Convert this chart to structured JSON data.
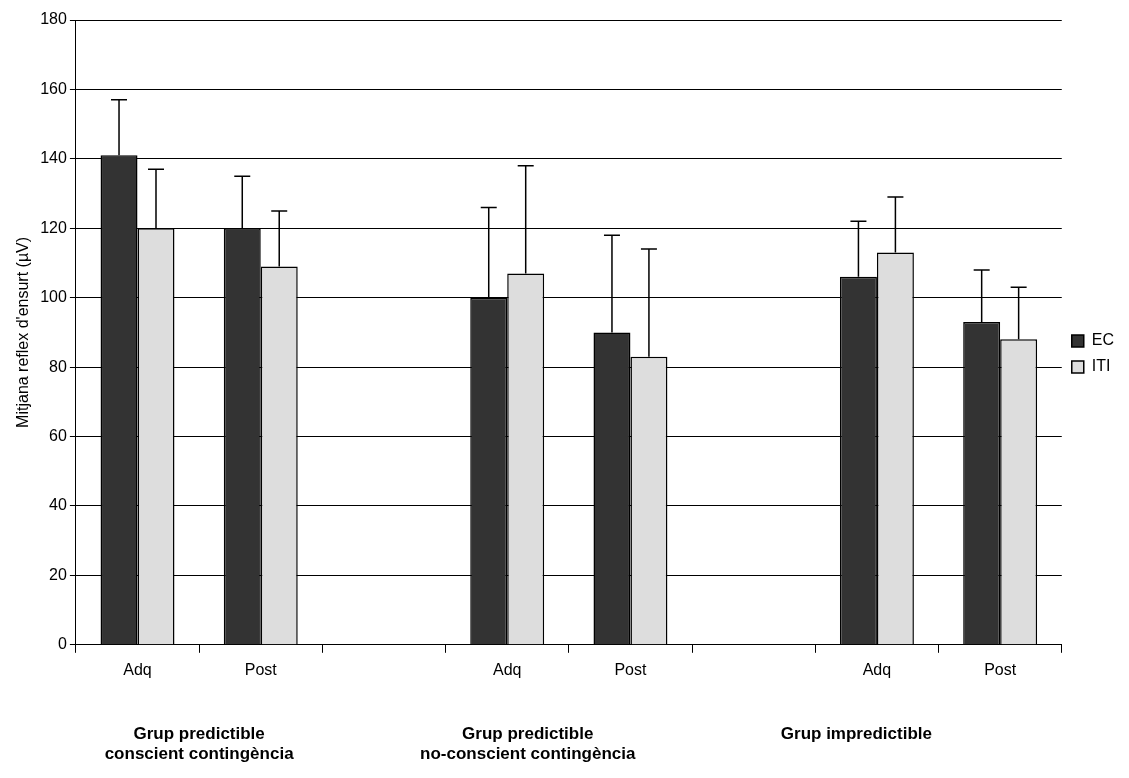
{
  "chart_data": {
    "type": "bar",
    "ylabel": "Mitjana reflex d'ensurt (µV)",
    "categories": [
      "Adq",
      "Post",
      null,
      "Adq",
      "Post",
      null,
      "Adq",
      "Post"
    ],
    "series": [
      {
        "name": "EC",
        "color": "#333333",
        "values": [
          141,
          120,
          null,
          100,
          90,
          null,
          106,
          93
        ],
        "errors": [
          [
            141,
            157
          ],
          [
            120,
            135
          ],
          null,
          [
            100,
            126
          ],
          [
            90,
            118
          ],
          null,
          [
            106,
            122
          ],
          [
            93,
            108
          ]
        ]
      },
      {
        "name": "ITI",
        "color": "#dddddd",
        "values": [
          120,
          109,
          null,
          107,
          83,
          null,
          113,
          88
        ],
        "errors": [
          [
            120,
            137
          ],
          [
            109,
            125
          ],
          null,
          [
            107,
            138
          ],
          [
            83,
            114
          ],
          null,
          [
            113,
            129
          ],
          [
            88,
            103
          ]
        ]
      }
    ],
    "ylim": [
      0,
      180
    ],
    "yticks": [
      0,
      20,
      40,
      60,
      80,
      100,
      120,
      140,
      160,
      180
    ],
    "grid": "y",
    "legend": "right",
    "annotations": [
      "Grup predictible\nconscient contingència",
      "Grup predictible\nno-conscient contingència",
      "Grup impredictible"
    ]
  }
}
